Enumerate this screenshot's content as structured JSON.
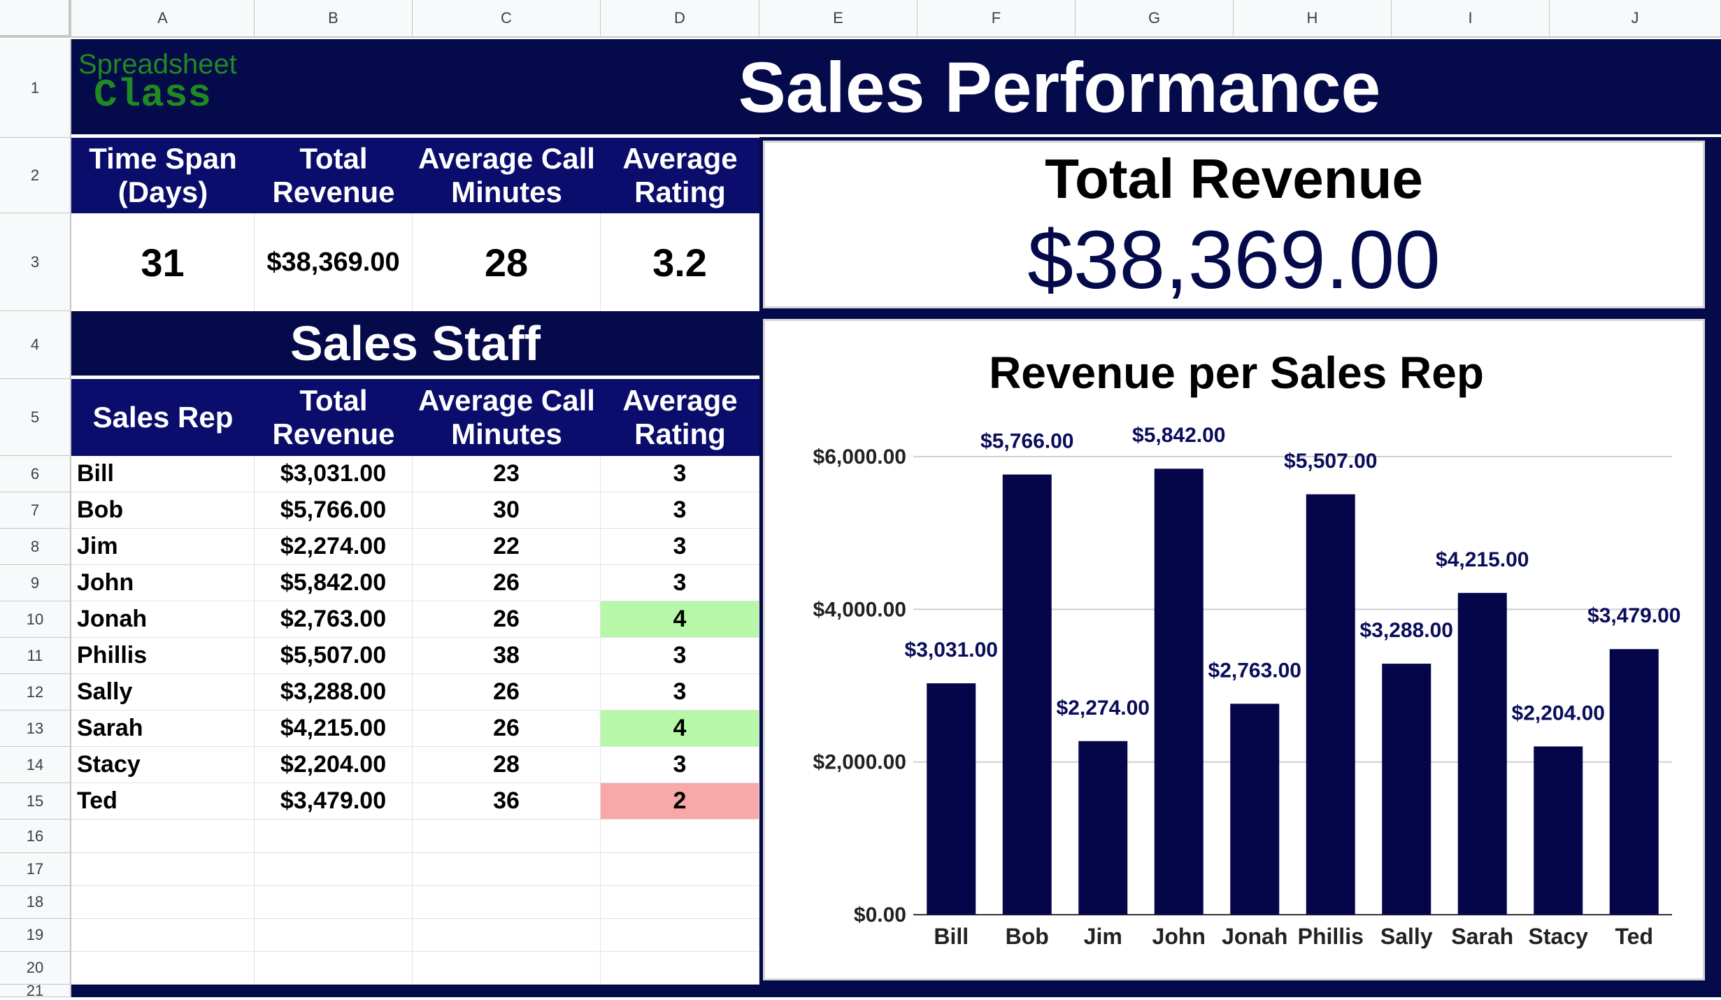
{
  "column_headers": [
    "A",
    "B",
    "C",
    "D",
    "E",
    "F",
    "G",
    "H",
    "I",
    "J"
  ],
  "row_numbers": [
    "1",
    "2",
    "3",
    "4",
    "5",
    "6",
    "7",
    "8",
    "9",
    "10",
    "11",
    "12",
    "13",
    "14",
    "15",
    "16",
    "17",
    "18",
    "19",
    "20",
    "21"
  ],
  "logo": {
    "line1": "Spreadsheet",
    "line2": "Class"
  },
  "title": "Sales Performance",
  "summary": {
    "headers": [
      "Time Span\n(Days)",
      "Total\nRevenue",
      "Average Call\nMinutes",
      "Average\nRating"
    ],
    "values": [
      "31",
      "$38,369.00",
      "28",
      "3.2"
    ]
  },
  "total_revenue_panel": {
    "label": "Total Revenue",
    "value": "$38,369.00"
  },
  "staff_section": {
    "title": "Sales Staff",
    "headers": [
      "Sales Rep",
      "Total\nRevenue",
      "Average Call\nMinutes",
      "Average\nRating"
    ],
    "rows": [
      {
        "rep": "Bill",
        "revenue": "$3,031.00",
        "minutes": "23",
        "rating": "3",
        "rating_color": "#ffffff"
      },
      {
        "rep": "Bob",
        "revenue": "$5,766.00",
        "minutes": "30",
        "rating": "3",
        "rating_color": "#ffffff"
      },
      {
        "rep": "Jim",
        "revenue": "$2,274.00",
        "minutes": "22",
        "rating": "3",
        "rating_color": "#ffffff"
      },
      {
        "rep": "John",
        "revenue": "$5,842.00",
        "minutes": "26",
        "rating": "3",
        "rating_color": "#ffffff"
      },
      {
        "rep": "Jonah",
        "revenue": "$2,763.00",
        "minutes": "26",
        "rating": "4",
        "rating_color": "#b7f7a8"
      },
      {
        "rep": "Phillis",
        "revenue": "$5,507.00",
        "minutes": "38",
        "rating": "3",
        "rating_color": "#ffffff"
      },
      {
        "rep": "Sally",
        "revenue": "$3,288.00",
        "minutes": "26",
        "rating": "3",
        "rating_color": "#ffffff"
      },
      {
        "rep": "Sarah",
        "revenue": "$4,215.00",
        "minutes": "26",
        "rating": "4",
        "rating_color": "#b7f7a8"
      },
      {
        "rep": "Stacy",
        "revenue": "$2,204.00",
        "minutes": "28",
        "rating": "3",
        "rating_color": "#ffffff"
      },
      {
        "rep": "Ted",
        "revenue": "$3,479.00",
        "minutes": "36",
        "rating": "2",
        "rating_color": "#f8a8a8"
      }
    ]
  },
  "colors": {
    "header_navy": "#0a0d6b",
    "band_navy": "#050a4b",
    "bar_color": "#05064a",
    "logo_green": "#1f8a1f",
    "rating_green": "#b7f7a8",
    "rating_red": "#f8a8a8"
  },
  "chart_data": {
    "type": "bar",
    "title": "Revenue per Sales Rep",
    "categories": [
      "Bill",
      "Bob",
      "Jim",
      "John",
      "Jonah",
      "Phillis",
      "Sally",
      "Sarah",
      "Stacy",
      "Ted"
    ],
    "values": [
      3031,
      5766,
      2274,
      5842,
      2763,
      5507,
      3288,
      4215,
      2204,
      3479
    ],
    "data_labels": [
      "$3,031.00",
      "$5,766.00",
      "$2,274.00",
      "$5,842.00",
      "$2,763.00",
      "$5,507.00",
      "$3,288.00",
      "$4,215.00",
      "$2,204.00",
      "$3,479.00"
    ],
    "y_ticks": [
      0,
      2000,
      4000,
      6000
    ],
    "y_tick_labels": [
      "$0.00",
      "$2,000.00",
      "$4,000.00",
      "$6,000.00"
    ],
    "ylim": [
      0,
      6000
    ],
    "grid": true,
    "legend": "none"
  }
}
